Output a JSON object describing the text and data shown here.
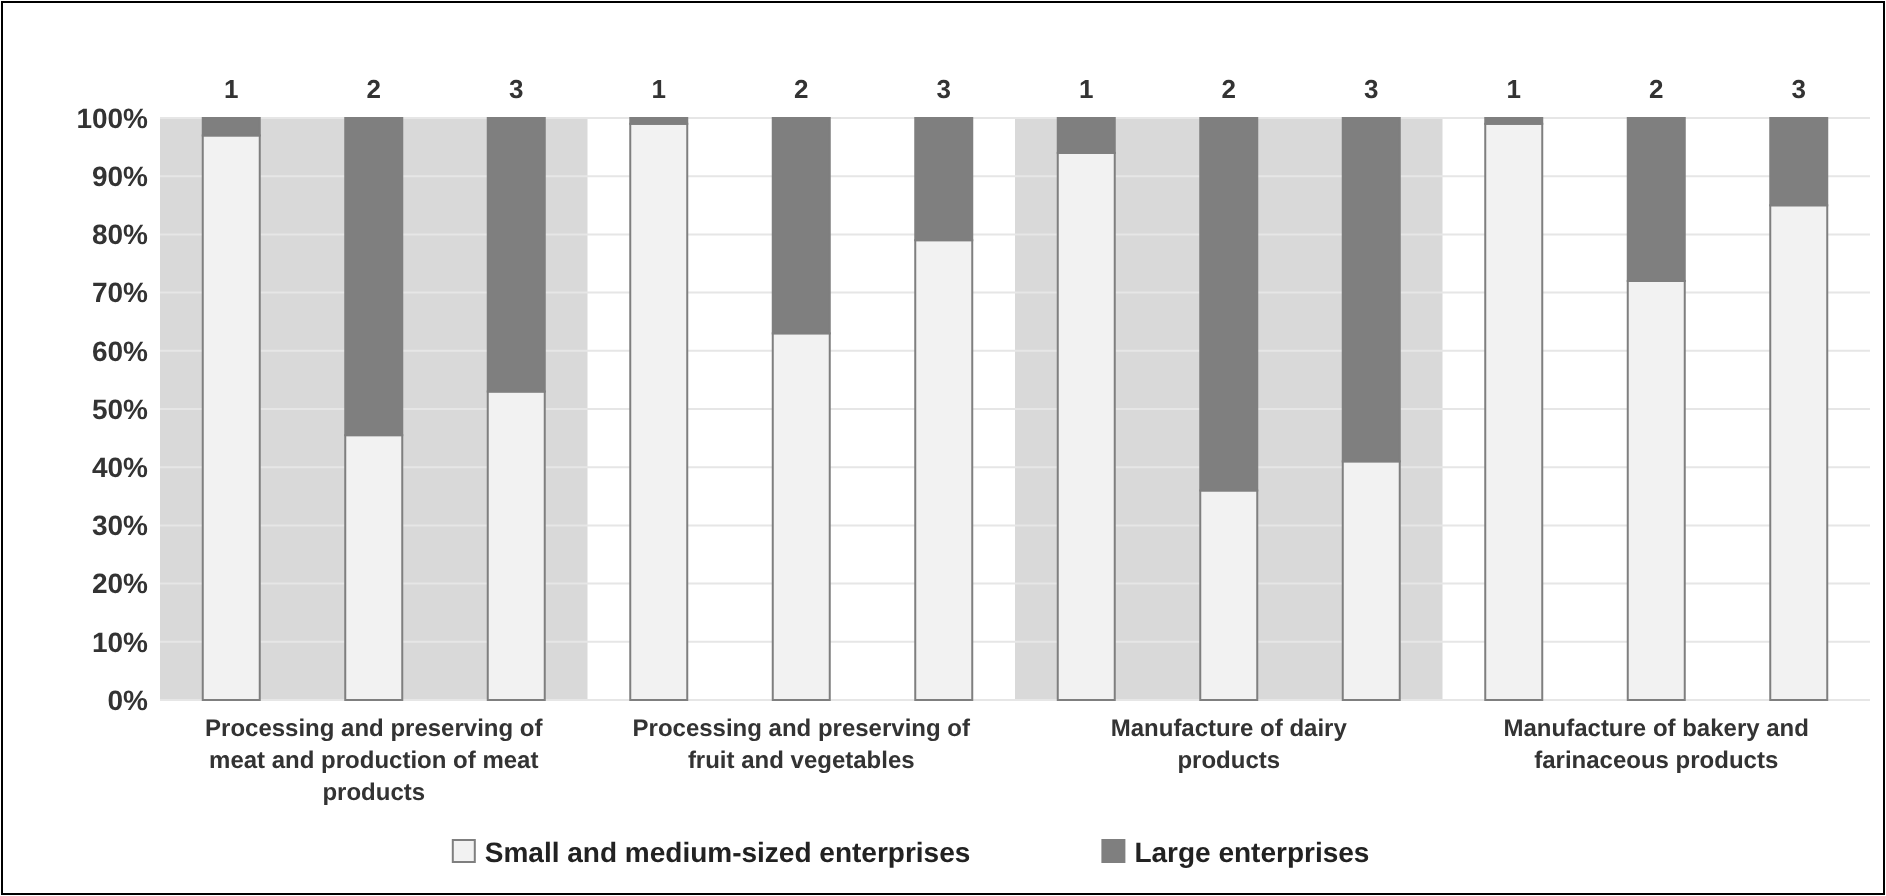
{
  "chart_data": {
    "type": "bar",
    "stacked": true,
    "categories": [
      "1",
      "2",
      "3",
      "1",
      "2",
      "3",
      "1",
      "2",
      "3",
      "1",
      "2",
      "3"
    ],
    "series": [
      {
        "name": "Small and medium-sized enterprises",
        "color": "#f2f2f2",
        "values": [
          97,
          45.5,
          53,
          99,
          63,
          79,
          94,
          36,
          41,
          99,
          72,
          85
        ]
      },
      {
        "name": "Large enterprises",
        "color": "#7f7f7f",
        "values": [
          3,
          54.5,
          47,
          1,
          37,
          21,
          6,
          64,
          59,
          1,
          28,
          15
        ]
      }
    ],
    "ylim": [
      0,
      100
    ],
    "yticks": [
      {
        "value": 0,
        "label": "0%"
      },
      {
        "value": 10,
        "label": "10%"
      },
      {
        "value": 20,
        "label": "20%"
      },
      {
        "value": 30,
        "label": "30%"
      },
      {
        "value": 40,
        "label": "40%"
      },
      {
        "value": 50,
        "label": "50%"
      },
      {
        "value": 60,
        "label": "60%"
      },
      {
        "value": 70,
        "label": "70%"
      },
      {
        "value": 80,
        "label": "80%"
      },
      {
        "value": 90,
        "label": "90%"
      },
      {
        "value": 100,
        "label": "100%"
      }
    ],
    "grid": "y",
    "legend": "bottom",
    "annotations": [
      "Processing and preserving of meat and production of meat products",
      "Processing and preserving of fruit and vegetables",
      "Manufacture of dairy products",
      "Manufacture of bakery and farinaceous products"
    ]
  }
}
